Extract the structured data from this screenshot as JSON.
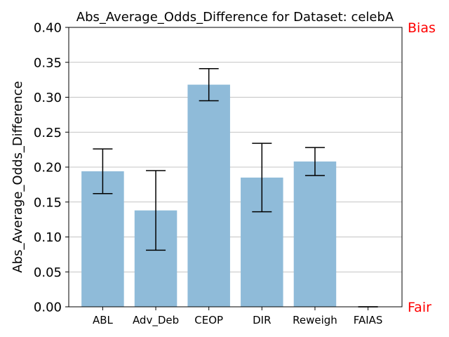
{
  "chart_data": {
    "type": "bar",
    "title": "Abs_Average_Odds_Difference for Dataset: celebA",
    "xlabel": "",
    "ylabel": "Abs_Average_Odds_Difference",
    "categories": [
      "ABL",
      "Adv_Deb",
      "CEOP",
      "DIR",
      "Reweigh",
      "FAIAS"
    ],
    "values": [
      0.194,
      0.138,
      0.318,
      0.185,
      0.208,
      0.0
    ],
    "errors": [
      0.032,
      0.057,
      0.023,
      0.049,
      0.02,
      0.0
    ],
    "ylim": [
      0,
      0.4
    ],
    "yticks": [
      "0.00",
      "0.05",
      "0.10",
      "0.15",
      "0.20",
      "0.25",
      "0.30",
      "0.35",
      "0.40"
    ],
    "grid": "horizontal",
    "bar_color": "#8fbbd9",
    "annotations": {
      "top": "Bias",
      "bottom": "Fair",
      "color": "#ff0000"
    }
  }
}
